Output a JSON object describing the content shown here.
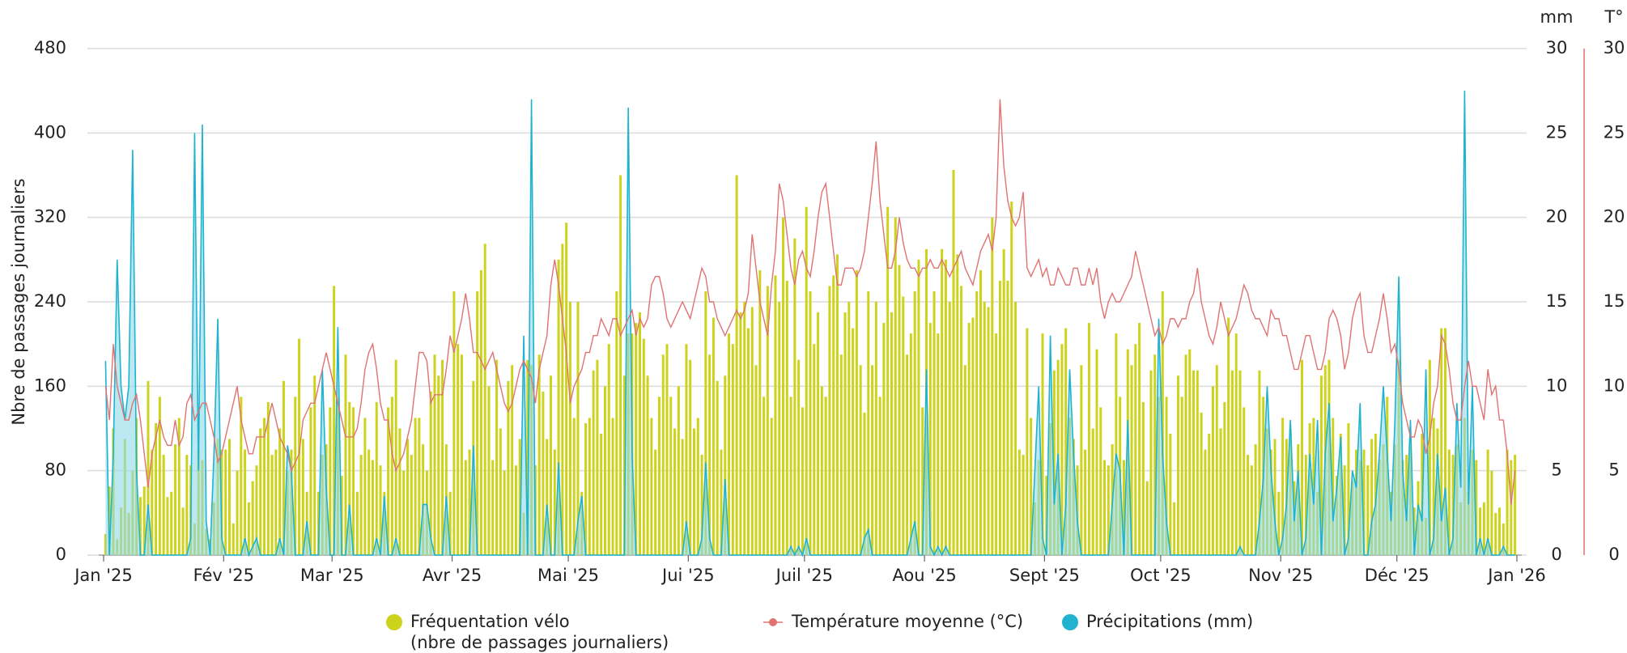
{
  "chart_data": {
    "type": "bar-line-area",
    "ylabel": "Nbre de passages journaliers",
    "y2label": "mm",
    "y3label": "T°",
    "xlim": [
      0,
      365
    ],
    "xticks": [
      {
        "value": 0,
        "label": "Jan '25"
      },
      {
        "value": 31,
        "label": "Fév '25"
      },
      {
        "value": 59,
        "label": "Mar '25"
      },
      {
        "value": 90,
        "label": "Avr '25"
      },
      {
        "value": 120,
        "label": "Mai '25"
      },
      {
        "value": 151,
        "label": "Jui '25"
      },
      {
        "value": 181,
        "label": "Juil '25"
      },
      {
        "value": 212,
        "label": "Aou '25"
      },
      {
        "value": 243,
        "label": "Sept '25"
      },
      {
        "value": 273,
        "label": "Oct '25"
      },
      {
        "value": 304,
        "label": "Nov '25"
      },
      {
        "value": 334,
        "label": "Déc '25"
      },
      {
        "value": 365,
        "label": "Jan '26"
      }
    ],
    "ylim": [
      0,
      480
    ],
    "yticks": [
      0,
      80,
      160,
      240,
      320,
      400,
      480
    ],
    "y2lim": [
      0,
      30
    ],
    "y2ticks": [
      0,
      5,
      10,
      15,
      20,
      25,
      30
    ],
    "y3lim": [
      0,
      30
    ],
    "y3ticks": [
      0,
      5,
      10,
      15,
      20,
      25,
      30
    ],
    "grid": true,
    "legend_subtitle": "(nbre de passages journaliers)",
    "series": [
      {
        "name": "Fréquentation vélo",
        "type": "bar",
        "color": "#cdd31a",
        "axis": "y",
        "values": [
          20,
          65,
          120,
          15,
          45,
          110,
          40,
          80,
          130,
          55,
          65,
          165,
          100,
          125,
          150,
          95,
          55,
          60,
          105,
          130,
          45,
          95,
          85,
          30,
          100,
          90,
          25,
          15,
          50,
          110,
          100,
          100,
          110,
          30,
          80,
          150,
          100,
          50,
          70,
          85,
          120,
          130,
          145,
          95,
          100,
          120,
          165,
          80,
          100,
          150,
          205,
          110,
          60,
          140,
          170,
          60,
          95,
          105,
          140,
          255,
          150,
          75,
          190,
          145,
          140,
          60,
          95,
          130,
          100,
          90,
          145,
          85,
          60,
          140,
          150,
          185,
          120,
          80,
          110,
          95,
          130,
          130,
          105,
          80,
          155,
          190,
          170,
          185,
          105,
          60,
          250,
          200,
          190,
          90,
          100,
          165,
          250,
          270,
          295,
          160,
          90,
          185,
          120,
          80,
          165,
          180,
          85,
          110,
          40,
          185,
          180,
          85,
          190,
          155,
          110,
          170,
          100,
          280,
          295,
          315,
          240,
          130,
          240,
          60,
          125,
          130,
          175,
          185,
          115,
          160,
          200,
          130,
          250,
          360,
          170,
          210,
          210,
          220,
          230,
          205,
          170,
          130,
          100,
          150,
          190,
          200,
          150,
          120,
          160,
          110,
          200,
          185,
          120,
          130,
          95,
          250,
          190,
          225,
          165,
          100,
          170,
          210,
          200,
          360,
          230,
          240,
          215,
          235,
          180,
          270,
          150,
          255,
          130,
          265,
          240,
          320,
          260,
          150,
          300,
          185,
          140,
          330,
          250,
          200,
          230,
          160,
          150,
          255,
          265,
          285,
          190,
          230,
          240,
          215,
          270,
          180,
          135,
          250,
          180,
          240,
          150,
          220,
          330,
          230,
          320,
          275,
          245,
          190,
          210,
          250,
          280,
          140,
          290,
          220,
          250,
          210,
          290,
          280,
          240,
          365,
          285,
          255,
          180,
          220,
          225,
          250,
          270,
          240,
          235,
          320,
          210,
          260,
          290,
          260,
          335,
          240,
          100,
          95,
          215,
          130,
          50,
          90,
          210,
          75,
          125,
          175,
          185,
          200,
          215,
          130,
          110,
          85,
          180,
          100,
          220,
          120,
          195,
          140,
          90,
          85,
          105,
          210,
          150,
          90,
          195,
          180,
          200,
          220,
          145,
          70,
          175,
          190,
          150,
          250,
          150,
          115,
          50,
          170,
          150,
          190,
          195,
          175,
          175,
          135,
          100,
          115,
          160,
          180,
          120,
          145,
          225,
          175,
          210,
          175,
          140,
          95,
          85,
          105,
          175,
          150,
          120,
          100,
          110,
          60,
          130,
          110,
          120,
          70,
          105,
          185,
          95,
          125,
          130,
          60,
          170,
          180,
          185,
          130,
          75,
          115,
          85,
          125,
          70,
          100,
          90,
          100,
          85,
          110,
          115,
          90,
          105,
          150,
          60,
          105,
          185,
          90,
          95,
          110,
          45,
          70,
          115,
          35,
          185,
          130,
          120,
          215,
          215,
          100,
          95,
          105,
          50,
          130,
          60,
          100,
          90,
          45,
          50,
          100,
          80,
          40,
          45,
          30,
          100,
          90,
          95
        ]
      },
      {
        "name": "Température moyenne (°C)",
        "type": "line",
        "color": "#e07272",
        "axis": "y3",
        "values": [
          10,
          8,
          12.5,
          10,
          9,
          8,
          8,
          9,
          9.5,
          8,
          6,
          4,
          6,
          7,
          8,
          7,
          6.5,
          6.5,
          8,
          6.5,
          7,
          9,
          9.5,
          8,
          8.5,
          9,
          9,
          8,
          7,
          5.5,
          6,
          7,
          8,
          9,
          10,
          8,
          7,
          6,
          6,
          7,
          7,
          7,
          8,
          9,
          8,
          7,
          6.5,
          6,
          5,
          5.5,
          6,
          8,
          8.5,
          9,
          9,
          10,
          11,
          12,
          11,
          10,
          9,
          8,
          7,
          7,
          7,
          7.5,
          9,
          11,
          12,
          12.5,
          11,
          9,
          8,
          8,
          6,
          5,
          5.5,
          6,
          7,
          8,
          10,
          12,
          12,
          11.5,
          9,
          9.5,
          9.5,
          9.5,
          11,
          13,
          12,
          13,
          14,
          15.5,
          14,
          12,
          12,
          11.5,
          11,
          11.5,
          12,
          11,
          10,
          9,
          8.5,
          9,
          10,
          11,
          11.5,
          11,
          10.5,
          9,
          11,
          12,
          13,
          16,
          17.5,
          16,
          14,
          12,
          9,
          10,
          10.5,
          11,
          12,
          12,
          13,
          13,
          14,
          13.5,
          13,
          14,
          14,
          13,
          13.5,
          14,
          14.5,
          13,
          14,
          13.5,
          14,
          16,
          16.5,
          16.5,
          15.5,
          14,
          13.5,
          14,
          14.5,
          15,
          14.5,
          14,
          15,
          16,
          17,
          16.5,
          15,
          15,
          14,
          13.5,
          13,
          13.5,
          14,
          14.5,
          14,
          14.5,
          15.5,
          19,
          17,
          15,
          14,
          13,
          16,
          18,
          22,
          21,
          19,
          17,
          16,
          17.5,
          18,
          17,
          16.5,
          18,
          20,
          21.5,
          22,
          20,
          18,
          16,
          16,
          17,
          17,
          17,
          16.5,
          17,
          18,
          20,
          22,
          24.5,
          21,
          19,
          17,
          17,
          18,
          20,
          18.5,
          17.5,
          17,
          17,
          16.5,
          17,
          17,
          17.5,
          17,
          17,
          17.5,
          17,
          16.5,
          17,
          17.5,
          18,
          17,
          16.5,
          16,
          17,
          18,
          18.5,
          19,
          18,
          20,
          27,
          23,
          21,
          20,
          19.5,
          20,
          21.5,
          17,
          16.5,
          17,
          17.5,
          16.5,
          17,
          16,
          16,
          17,
          16.5,
          16,
          16,
          17,
          17,
          16,
          16,
          17,
          16,
          17,
          15,
          14,
          15,
          15.5,
          15,
          15,
          15.5,
          16,
          16.5,
          18,
          17,
          16,
          15,
          14,
          13,
          13.5,
          12.5,
          13,
          14,
          14,
          13.5,
          14,
          14,
          15,
          15.5,
          17,
          15,
          14,
          13,
          12.5,
          13.5,
          15,
          14,
          13,
          13.5,
          14,
          15,
          16,
          15.5,
          14.5,
          14,
          14,
          13.5,
          13,
          14.5,
          14,
          14,
          13,
          13,
          12,
          11,
          11,
          12,
          13,
          13,
          12,
          11,
          11,
          12,
          14,
          14.5,
          14,
          13,
          11,
          12,
          14,
          15,
          15.5,
          13,
          12,
          12,
          13,
          14,
          15.5,
          14,
          12,
          12.5,
          11,
          9,
          8,
          7,
          7,
          8,
          7.5,
          6,
          7,
          9,
          10,
          13,
          12.5,
          11,
          9,
          8,
          8,
          10,
          11.5,
          10,
          10,
          9,
          8,
          11,
          9.5,
          10,
          8,
          8,
          6,
          3,
          5
        ]
      },
      {
        "name": "Précipitations (mm)",
        "type": "area",
        "color": "#1fb3cf",
        "axis": "y2",
        "values": [
          11.5,
          0,
          6,
          17.5,
          10,
          8,
          10,
          24,
          5,
          0,
          0,
          3,
          0,
          0,
          0,
          0,
          0,
          0,
          0,
          0,
          0,
          0,
          1,
          25,
          5,
          25.5,
          2,
          0,
          6,
          14,
          1,
          0,
          0,
          0,
          0,
          0,
          1,
          0,
          0.5,
          1,
          0,
          0,
          0,
          0,
          0,
          1,
          0,
          6.5,
          5,
          0,
          0,
          0,
          2,
          0,
          0,
          0,
          11,
          4,
          0,
          0,
          13.5,
          0,
          0,
          3,
          0,
          0,
          0,
          0,
          0,
          0,
          1,
          0,
          3.5,
          0,
          0,
          1,
          0,
          0,
          0,
          0,
          0,
          0,
          3,
          3,
          1,
          0,
          0,
          0,
          3.5,
          0,
          0,
          0,
          0,
          0,
          0,
          6.5,
          0,
          0,
          0,
          0,
          0,
          0,
          0,
          0,
          0,
          0,
          0,
          0,
          13,
          0,
          27,
          0,
          0,
          0,
          3,
          0,
          0,
          5.5,
          0,
          0,
          0,
          0,
          2,
          3.5,
          0,
          0,
          0,
          0,
          0,
          0,
          0,
          0,
          0,
          0,
          0,
          26.5,
          6,
          0,
          0,
          0,
          0,
          0,
          0,
          0,
          0,
          0,
          0,
          0,
          0,
          0,
          2,
          0,
          0,
          0,
          1,
          5.5,
          1,
          0,
          0,
          0,
          4.5,
          0,
          0,
          0,
          0,
          0,
          0,
          0,
          0,
          0,
          0,
          0,
          0,
          0,
          0,
          0,
          0,
          0.5,
          0,
          0.5,
          0,
          1,
          0,
          0,
          0,
          0,
          0,
          0,
          0,
          0,
          0,
          0,
          0,
          0,
          0,
          0,
          1,
          1.5,
          0,
          0,
          0,
          0,
          0,
          0,
          0,
          0,
          0,
          0,
          1,
          2,
          0,
          0,
          11,
          0.5,
          0,
          0.5,
          0,
          0.5,
          0,
          0,
          0,
          0,
          0,
          0,
          0,
          0,
          0,
          0,
          0,
          0,
          0,
          0,
          0,
          0,
          0,
          0,
          0,
          0,
          0,
          0,
          5,
          10,
          1,
          0,
          13,
          3,
          6,
          0,
          3,
          11,
          6,
          2,
          0,
          0,
          0,
          0,
          0,
          0,
          0,
          0,
          3,
          6,
          5,
          0,
          8,
          0,
          0,
          0,
          0,
          0,
          0,
          0,
          14,
          6,
          2,
          0,
          0,
          0,
          0,
          0,
          0,
          0,
          0,
          0,
          0,
          0,
          0,
          0,
          0,
          0,
          0,
          0,
          0,
          0.5,
          0,
          0,
          0,
          0,
          2,
          4.5,
          10,
          5,
          2,
          0,
          1,
          3,
          8,
          2,
          5,
          0,
          1,
          6,
          3,
          8,
          0,
          6,
          9,
          2,
          4,
          7,
          0,
          1,
          5,
          4,
          9,
          0,
          0,
          2,
          3,
          6,
          10,
          6,
          2,
          8,
          16.5,
          5,
          2,
          8,
          0,
          3,
          2,
          11,
          0,
          1,
          6,
          2,
          4,
          0,
          1,
          9,
          4,
          27.5,
          3,
          10,
          0,
          1,
          0,
          1,
          0,
          0,
          0,
          0.5,
          0,
          0,
          0
        ]
      }
    ]
  }
}
